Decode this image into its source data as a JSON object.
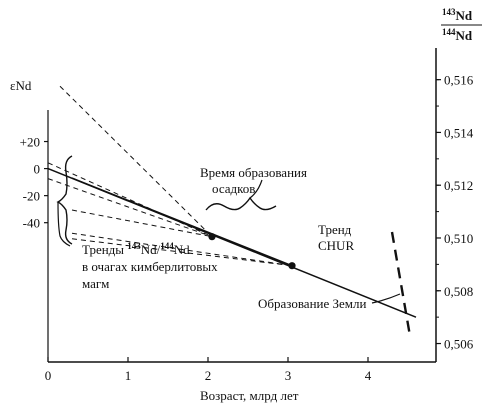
{
  "chart_data": {
    "type": "line",
    "title": "",
    "xlabel": "Возраст, млрд лет",
    "x_ticks": [
      0,
      1,
      2,
      3,
      4
    ],
    "xlim": [
      0,
      4.85
    ],
    "left_axis": {
      "label": "εNd",
      "ticks": [
        {
          "label": "+20",
          "value": 20
        },
        {
          "label": "0",
          "value": 0
        },
        {
          "label": "-20",
          "value": -20
        },
        {
          "label": "-40",
          "value": -40
        }
      ]
    },
    "right_axis": {
      "label_top": "143Nd",
      "label_bottom": "144Nd",
      "ylim": [
        0.5053,
        0.5172
      ],
      "ticks": [
        "0,516",
        "0,514",
        "0,512",
        "0,510",
        "0,508",
        "0,506"
      ]
    },
    "series": [
      {
        "style": "solid",
        "points": [
          [
            0,
            0.51263
          ],
          [
            4.6,
            0.507
          ]
        ]
      },
      {
        "style": "solid",
        "points": [
          [
            0.3,
            0.51227
          ],
          [
            3.05,
            0.50895
          ]
        ]
      },
      {
        "style": "dashed",
        "points": [
          [
            0.15,
            0.51575
          ],
          [
            2.05,
            0.51005
          ]
        ]
      },
      {
        "style": "dashed",
        "points": [
          [
            0,
            0.51285
          ],
          [
            2.05,
            0.51005
          ]
        ]
      },
      {
        "style": "dashed",
        "points": [
          [
            0,
            0.51225
          ],
          [
            2.05,
            0.51005
          ]
        ]
      },
      {
        "style": "dashed",
        "points": [
          [
            0.3,
            0.51106
          ],
          [
            2.05,
            0.51005
          ]
        ]
      },
      {
        "style": "dashed",
        "points": [
          [
            0.3,
            0.51018
          ],
          [
            3.05,
            0.50895
          ]
        ]
      },
      {
        "style": "dashed",
        "points": [
          [
            0.3,
            0.50997
          ],
          [
            3.05,
            0.50895
          ]
        ]
      }
    ],
    "markers": [
      {
        "x": 2.05,
        "y": 0.51005
      },
      {
        "x": 3.05,
        "y": 0.50895
      }
    ],
    "annotations": {
      "sediments_line1": "Время образования",
      "sediments_line2": "осадков",
      "chur_line1": "Тренд",
      "chur_line2": "CHUR",
      "earth_label": "Образование Земли",
      "kimb_mass1": "143",
      "kimb_mass2": "144",
      "kimb_prefix": "Тренды ",
      "kimb_nd1": "Nd/",
      "kimb_nd2": "Nd",
      "kimb_line2": "в очагах кимберлитовых",
      "kimb_line3": "магм"
    }
  }
}
